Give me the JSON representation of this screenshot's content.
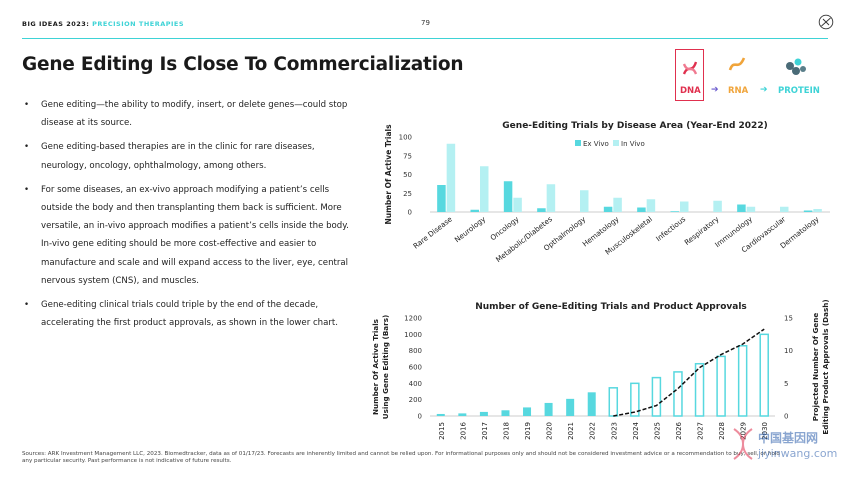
{
  "header": {
    "series_label": "BIG IDEAS 2023:",
    "section": "PRECISION THERAPIES",
    "page_number": "79"
  },
  "title": "Gene Editing Is Close To Commercialization",
  "bullets": [
    "Gene editing—the ability to modify, insert, or delete genes—could stop disease at its source.",
    "Gene editing-based therapies are in the clinic for rare diseases, neurology, oncology, ophthalmology, among others.",
    "For some diseases, an ex-vivo approach modifying a patient’s cells outside the body and then transplanting them back is sufficient. More versatile, an in-vivo approach modifies a patient’s cells inside the body. In-vivo gene editing should be more cost-effective and easier to manufacture and scale and will expand access to the liver, eye, central nervous system (CNS), and muscles.",
    "Gene-editing clinical trials could triple by the end of the decade, accelerating the first product approvals, as shown in the lower chart."
  ],
  "bullet_marker": "•",
  "flow": {
    "dna": "DNA",
    "rna": "RNA",
    "protein": "PROTEIN",
    "arrow": "➔"
  },
  "colors": {
    "accent": "#3ed3d6",
    "ex_vivo": "#57d8df",
    "in_vivo": "#b4f0f2",
    "dna": "#e0304e",
    "rna": "#f0a43a",
    "protein": "#3ed3d6"
  },
  "chart_data": [
    {
      "type": "bar",
      "title": "Gene-Editing Trials by Disease Area (Year-End 2022)",
      "ylabel": "Number Of Active Trials",
      "ylim": [
        0,
        100
      ],
      "yticks": [
        "0",
        "25",
        "50",
        "75",
        "100"
      ],
      "categories": [
        "Rare Disease",
        "Neurology",
        "Oncology",
        "Metabolic/Diabetes",
        "Opthalmology",
        "Hematology",
        "Musculoskeletal",
        "Infectious",
        "Respiratory",
        "Immunology",
        "Cardiovascular",
        "Dermatology"
      ],
      "series": [
        {
          "name": "Ex Vivo",
          "values": [
            36,
            3,
            41,
            5,
            0,
            7,
            6,
            1,
            0,
            10,
            0,
            2
          ]
        },
        {
          "name": "In Vivo",
          "values": [
            91,
            61,
            19,
            37,
            29,
            19,
            17,
            14,
            15,
            7,
            7,
            4
          ]
        }
      ],
      "legend": "top"
    },
    {
      "type": "bar",
      "title": "Number of  Gene-Editing Trials and Product Approvals",
      "ylabel": "Number Of Active Trials Using Gene Editing (Bars)",
      "y2label": "Projected Number Of Gene Editing Product Approvals (Dash)",
      "ylim": [
        0,
        1200
      ],
      "yticks": [
        "0",
        "200",
        "400",
        "600",
        "800",
        "1000",
        "1200"
      ],
      "y2lim": [
        0,
        15
      ],
      "y2ticks": [
        "0",
        "5",
        "10",
        "15"
      ],
      "categories": [
        "2015",
        "2016",
        "2017",
        "2018",
        "2019",
        "2020",
        "2021",
        "2022",
        "2023",
        "2024",
        "2025",
        "2026",
        "2027",
        "2028",
        "2029",
        "2030"
      ],
      "series": [
        {
          "values": [
            25,
            32,
            50,
            70,
            105,
            160,
            210,
            290,
            345,
            400,
            470,
            540,
            640,
            730,
            860,
            1000
          ],
          "style": "bars",
          "forecast_from": "2023"
        },
        {
          "values": [
            null,
            null,
            null,
            null,
            null,
            null,
            null,
            null,
            0,
            0.6,
            1.6,
            4.2,
            7.4,
            9.4,
            11,
            13.3
          ],
          "style": "dash"
        }
      ]
    }
  ],
  "footer": "Sources: ARK Investment Management LLC, 2023. Biomedtracker, data as of 01/17/23. Forecasts are inherently limited and cannot be relied upon. For informational purposes only and should not be considered investment advice or a recommendation to buy, sell, or hold any particular security. Past performance is not indicative of future results.",
  "watermark": {
    "line1": "中国基因网",
    "line2": "jiyinwang.com"
  }
}
